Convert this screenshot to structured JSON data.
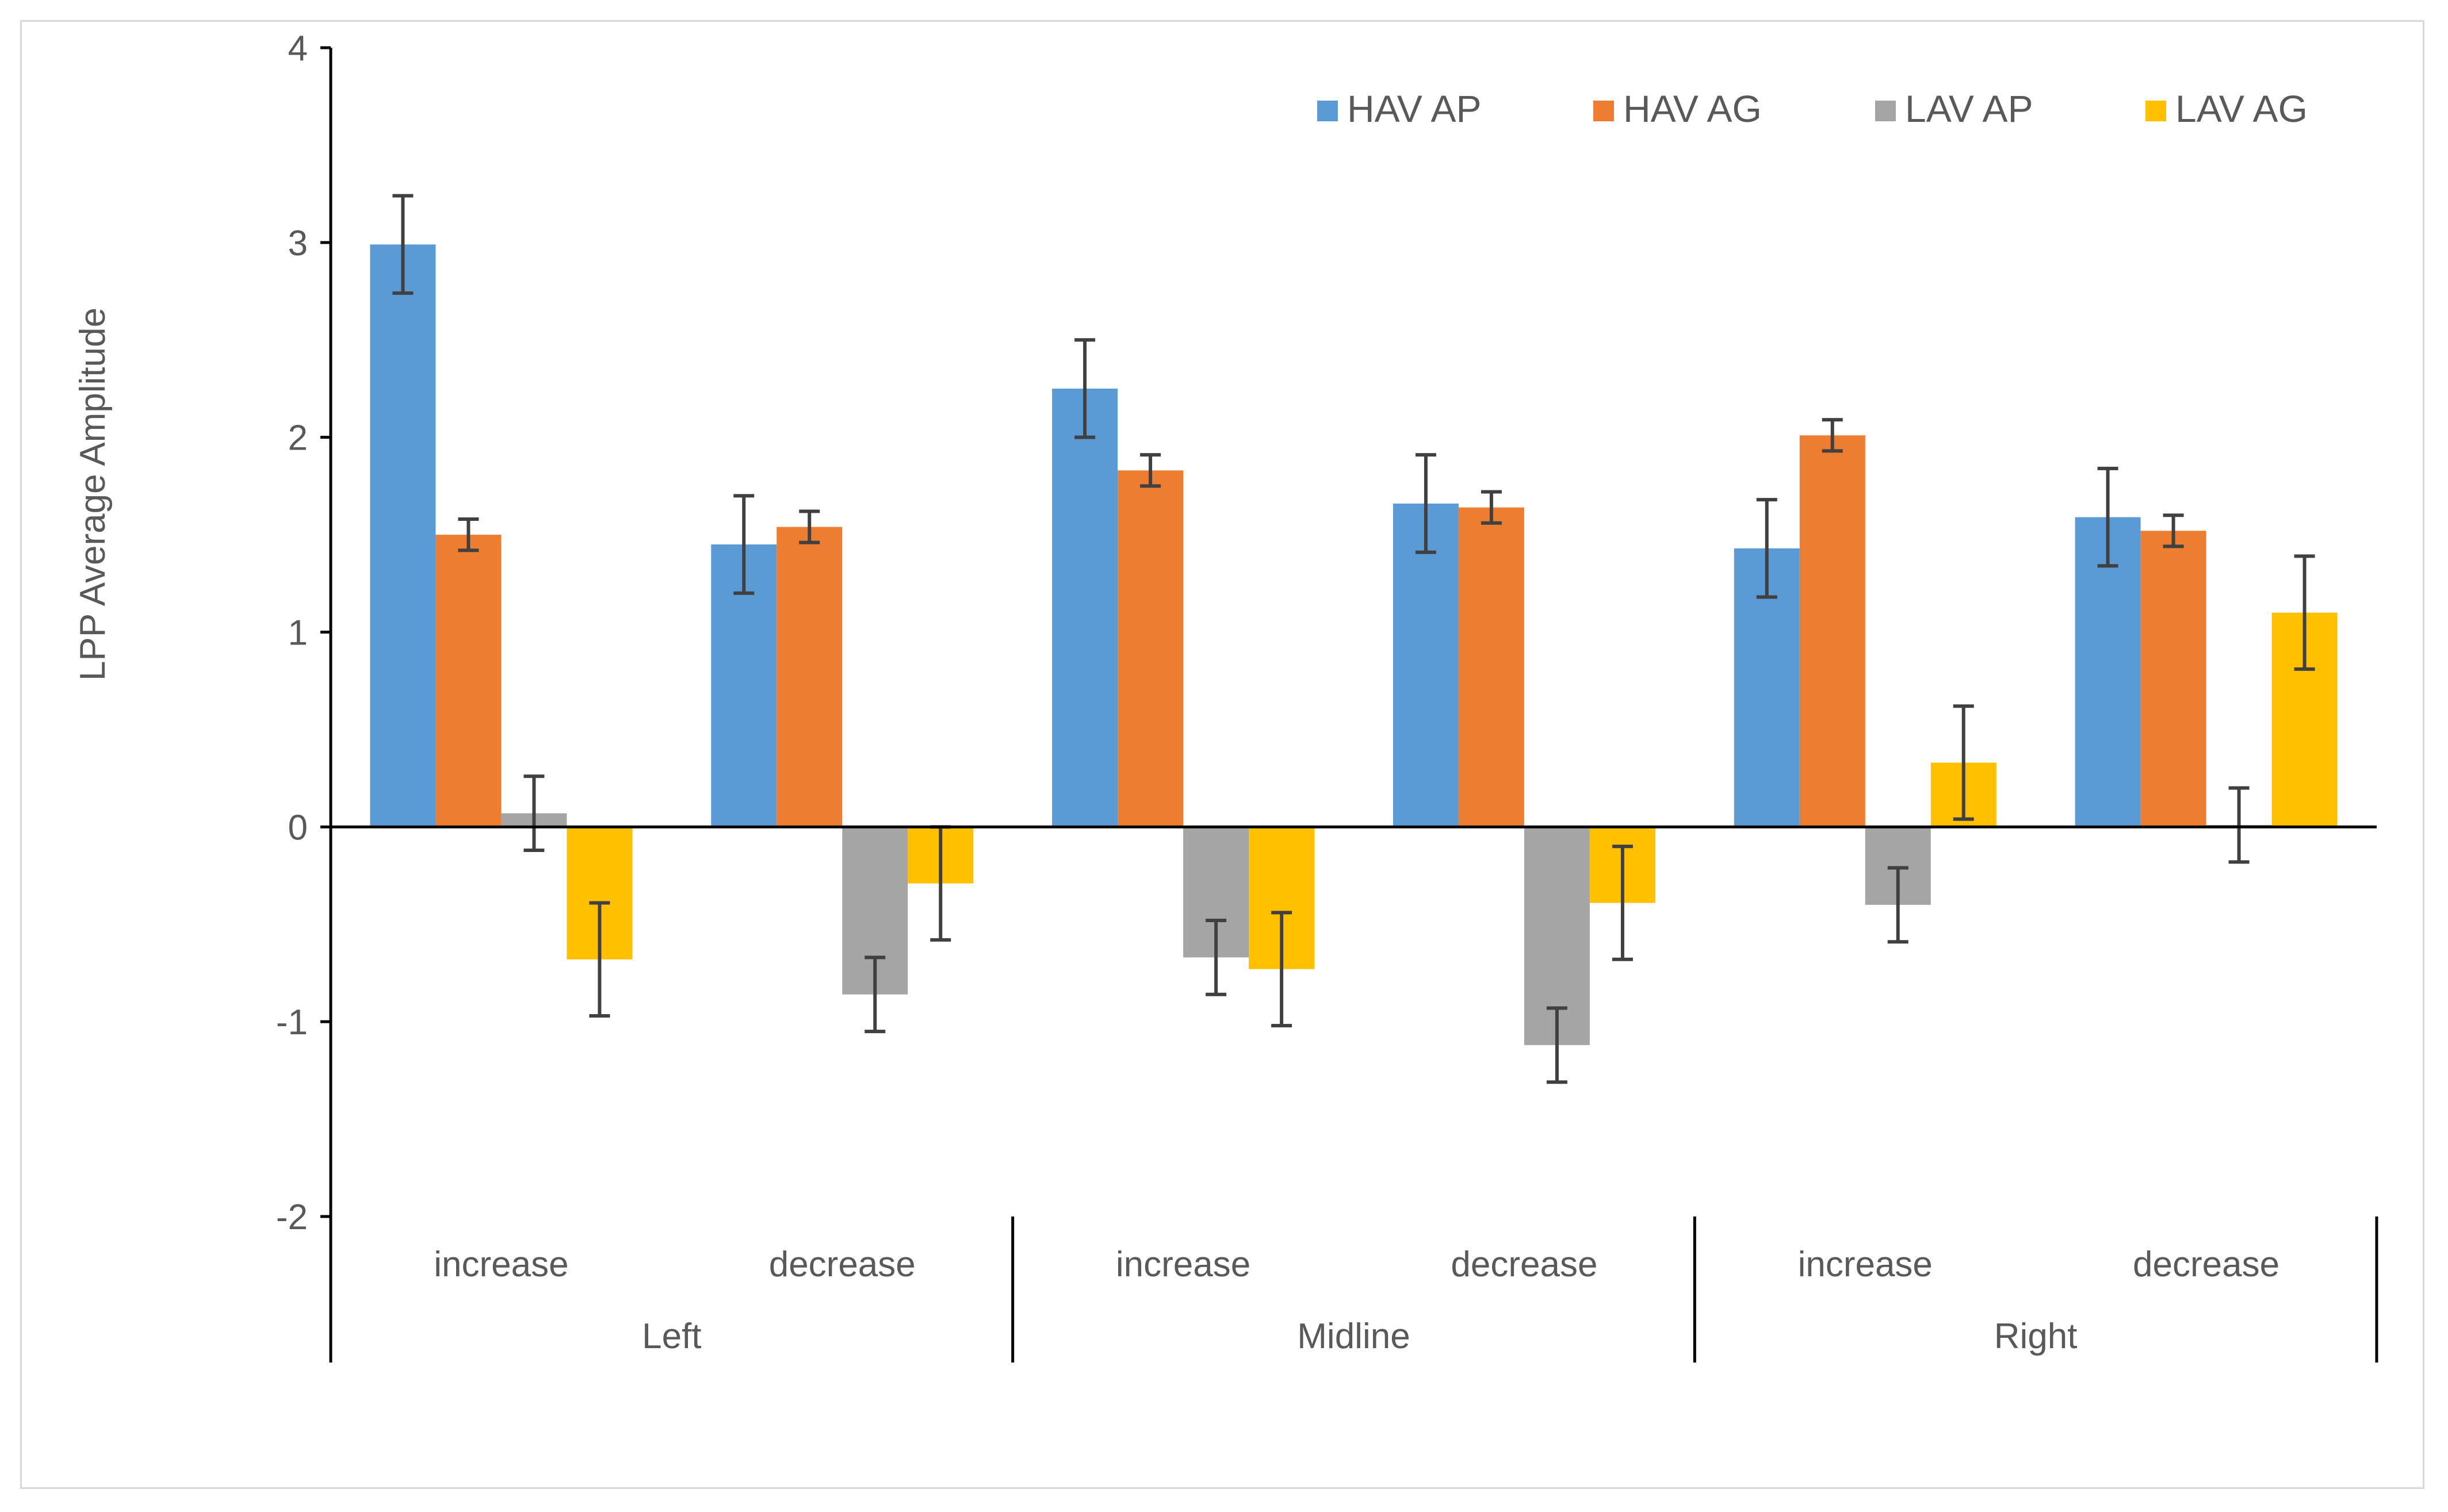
{
  "chart_data": {
    "type": "bar",
    "ylabel": "LPP Average Amplitude",
    "ylim": [
      -2,
      4
    ],
    "yticks": [
      -2,
      -1,
      0,
      1,
      2,
      3,
      4
    ],
    "groups": [
      {
        "label": "Left",
        "categories": [
          "increase",
          "decrease"
        ]
      },
      {
        "label": "Midline",
        "categories": [
          "increase",
          "decrease"
        ]
      },
      {
        "label": "Right",
        "categories": [
          "increase",
          "decrease"
        ]
      }
    ],
    "legend_position": "top-right",
    "series": [
      {
        "name": "HAV AP",
        "color": "#5b9bd5",
        "values": [
          2.99,
          1.45,
          2.25,
          1.66,
          1.43,
          1.59
        ],
        "errors": [
          0.25,
          0.25,
          0.25,
          0.25,
          0.25,
          0.25
        ]
      },
      {
        "name": "HAV AG",
        "color": "#ed7d31",
        "values": [
          1.5,
          1.54,
          1.83,
          1.64,
          2.01,
          1.52
        ],
        "errors": [
          0.08,
          0.08,
          0.08,
          0.08,
          0.08,
          0.08
        ]
      },
      {
        "name": "LAV AP",
        "color": "#a5a5a5",
        "values": [
          0.07,
          -0.86,
          -0.67,
          -1.12,
          -0.4,
          0.01
        ],
        "errors": [
          0.19,
          0.19,
          0.19,
          0.19,
          0.19,
          0.19
        ]
      },
      {
        "name": "LAV AG",
        "color": "#ffc000",
        "values": [
          -0.68,
          -0.29,
          -0.73,
          -0.39,
          0.33,
          1.1
        ],
        "errors": [
          0.29,
          0.29,
          0.29,
          0.29,
          0.29,
          0.29
        ]
      }
    ]
  }
}
